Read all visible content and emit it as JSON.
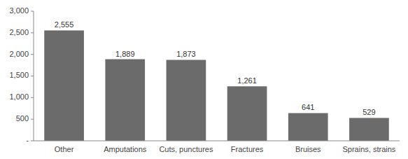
{
  "chart_data": {
    "type": "bar",
    "categories": [
      "Other",
      "Amputations",
      "Cuts, punctures",
      "Fractures",
      "Bruises",
      "Sprains, strains"
    ],
    "values": [
      2555,
      1889,
      1873,
      1261,
      641,
      529
    ],
    "value_labels": [
      "2,555",
      "1,889",
      "1,873",
      "1,261",
      "641",
      "529"
    ],
    "data_labels": true,
    "color": "#6b6b6b",
    "ylim": [
      0,
      3000
    ],
    "yticks": [
      {
        "value": 0,
        "label": "-"
      },
      500,
      {
        "value": 1000,
        "label": "1,000"
      },
      {
        "value": 1500,
        "label": "1,500"
      },
      {
        "value": 2000,
        "label": "2,000"
      },
      {
        "value": 2500,
        "label": "2,500"
      },
      {
        "value": 3000,
        "label": "3,000"
      }
    ],
    "grid": false
  }
}
